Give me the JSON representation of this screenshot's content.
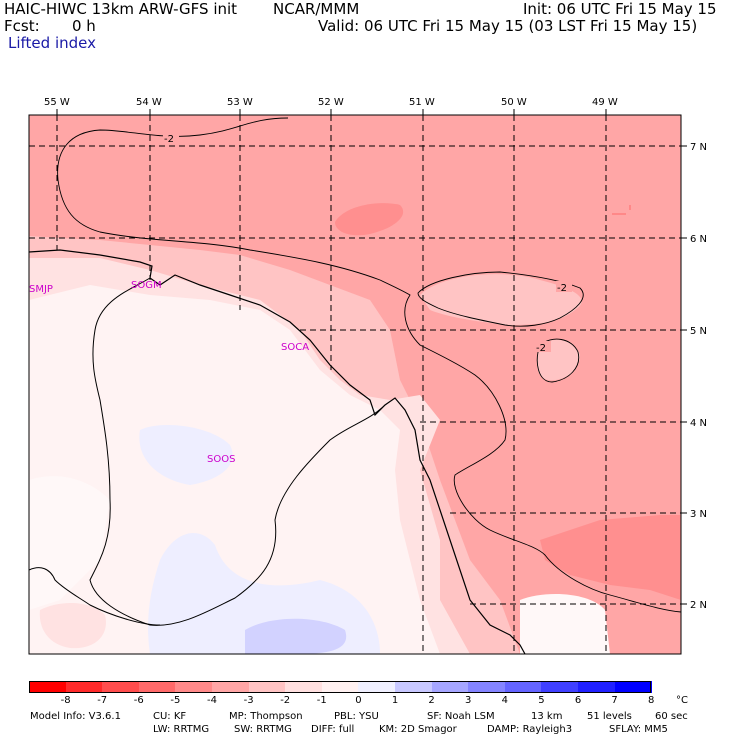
{
  "header": {
    "model": "HAIC-HIWC 13km ARW-GFS init",
    "org": "NCAR/MMM",
    "init": "Init: 06 UTC Fri 15 May 15",
    "fcst_label": "Fcst:",
    "fcst_value": "0 h",
    "valid": "Valid: 06 UTC Fri 15 May 15 (03 LST Fri 15 May 15)",
    "field": "Lifted index"
  },
  "map": {
    "lon_labels": [
      "55 W",
      "54 W",
      "53 W",
      "52 W",
      "51 W",
      "50 W",
      "49 W"
    ],
    "lat_labels": [
      "7 N",
      "6 N",
      "5 N",
      "4 N",
      "3 N",
      "2 N"
    ],
    "stations": [
      "SMJP",
      "SOGM",
      "SOCA",
      "SOOS"
    ],
    "contour_labels": [
      "-2",
      "-2",
      "-2"
    ]
  },
  "colorbar": {
    "unit": "°C",
    "ticks": [
      "-8",
      "-7",
      "-6",
      "-5",
      "-4",
      "-3",
      "-2",
      "-1",
      "0",
      "1",
      "2",
      "3",
      "4",
      "5",
      "6",
      "7",
      "8"
    ],
    "colors": [
      "#ff0000",
      "#ff2a2a",
      "#ff4d4d",
      "#ff6a6a",
      "#ff8a8a",
      "#ffa6a6",
      "#ffc4c4",
      "#ffe0e0",
      "#fff1f1",
      "#f0f0ff",
      "#c8c8ff",
      "#a6a6ff",
      "#8484ff",
      "#6464ff",
      "#4040ff",
      "#2020ff",
      "#0000ff"
    ]
  },
  "footer": {
    "line1": [
      "Model Info: V3.6.1",
      "CU: KF",
      "MP: Thompson",
      "PBL: YSU",
      "SF: Noah LSM",
      "13 km",
      "51 levels",
      "60 sec"
    ],
    "line2": [
      "LW: RRTMG",
      "SW: RRTMG",
      "DIFF: full",
      "KM: 2D Smagor",
      "DAMP: Rayleigh3",
      "SFLAY: MM5"
    ]
  }
}
